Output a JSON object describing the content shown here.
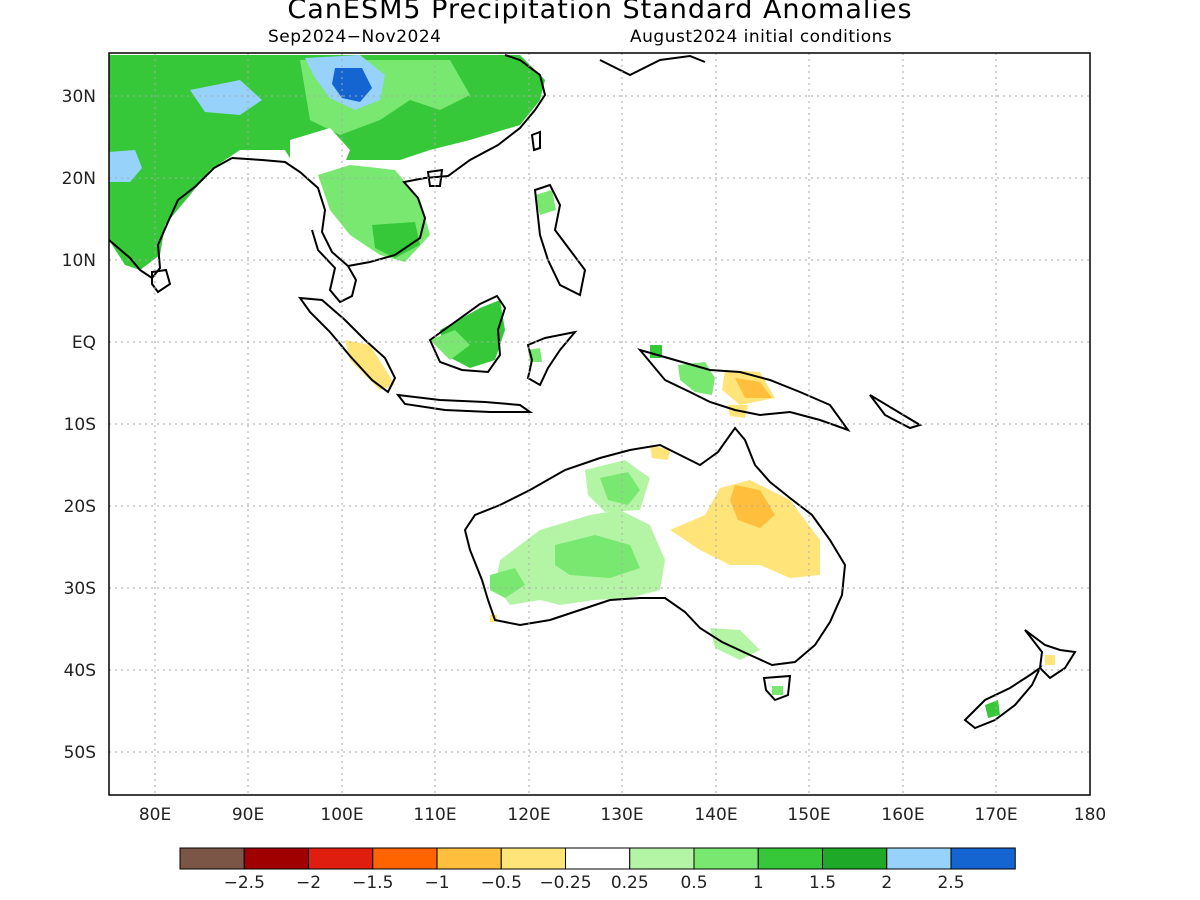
{
  "title": "CanESM5 Precipitation Standard Anomalies",
  "period": "Sep2024−Nov2024",
  "initial_conditions": "August2024 initial conditions",
  "lat_labels": [
    "30N",
    "20N",
    "10N",
    "EQ",
    "10S",
    "20S",
    "30S",
    "40S",
    "50S"
  ],
  "lon_labels": [
    "80E",
    "90E",
    "100E",
    "110E",
    "120E",
    "130E",
    "140E",
    "150E",
    "160E",
    "170E",
    "180"
  ],
  "colorbar": {
    "labels": [
      "−2.5",
      "−2",
      "−1.5",
      "−1",
      "−0.5",
      "−0.25",
      "0.25",
      "0.5",
      "1",
      "1.5",
      "2",
      "2.5"
    ],
    "colors": [
      "#7b5647",
      "#a00000",
      "#e01e10",
      "#ff6400",
      "#ffbe3c",
      "#ffe47a",
      "#ffffff",
      "#b4f5a5",
      "#78e870",
      "#37c83a",
      "#1eaa28",
      "#96d2fa",
      "#1464d2"
    ]
  },
  "colors": {
    "light_green": "#b4f5a5",
    "green": "#78e870",
    "mid_green": "#37c83a",
    "dark_green": "#1eaa28",
    "light_blue": "#96d2fa",
    "blue": "#1464d2",
    "light_yellow": "#ffe47a",
    "orange_yellow": "#ffbe3c"
  }
}
